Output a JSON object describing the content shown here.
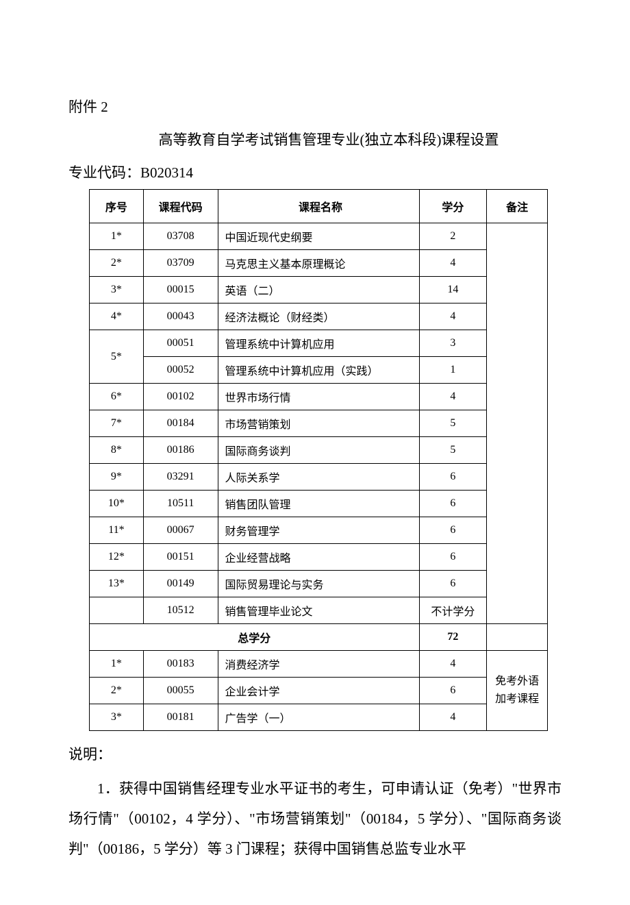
{
  "attachment": "附件 2",
  "title": "高等教育自学考试销售管理专业(独立本科段)课程设置",
  "majorCodeLabel": "专业代码：B020314",
  "headers": {
    "seq": "序号",
    "code": "课程代码",
    "name": "课程名称",
    "credit": "学分",
    "note": "备注"
  },
  "rows": [
    {
      "seq": "1*",
      "code": "03708",
      "name": "中国近现代史纲要",
      "credit": "2"
    },
    {
      "seq": "2*",
      "code": "03709",
      "name": "马克思主义基本原理概论",
      "credit": "4"
    },
    {
      "seq": "3*",
      "code": "00015",
      "name": "英语（二）",
      "credit": "14"
    },
    {
      "seq": "4*",
      "code": "00043",
      "name": "经济法概论（财经类）",
      "credit": "4"
    }
  ],
  "row5": {
    "seq": "5*",
    "codeA": "00051",
    "nameA": "管理系统中计算机应用",
    "creditA": "3",
    "codeB": "00052",
    "nameB": "管理系统中计算机应用（实践）",
    "creditB": "1"
  },
  "rowsAfter5": [
    {
      "seq": "6*",
      "code": "00102",
      "name": "世界市场行情",
      "credit": "4"
    },
    {
      "seq": "7*",
      "code": "00184",
      "name": "市场营销策划",
      "credit": "5"
    },
    {
      "seq": "8*",
      "code": "00186",
      "name": "国际商务谈判",
      "credit": "5"
    },
    {
      "seq": "9*",
      "code": "03291",
      "name": "人际关系学",
      "credit": "6"
    },
    {
      "seq": "10*",
      "code": "10511",
      "name": "销售团队管理",
      "credit": "6"
    },
    {
      "seq": "11*",
      "code": "00067",
      "name": "财务管理学",
      "credit": "6"
    },
    {
      "seq": "12*",
      "code": "00151",
      "name": "企业经营战略",
      "credit": "6"
    },
    {
      "seq": "13*",
      "code": "00149",
      "name": "国际贸易理论与实务",
      "credit": "6"
    },
    {
      "seq": "",
      "code": "10512",
      "name": "销售管理毕业论文",
      "credit": "不计学分"
    }
  ],
  "total": {
    "label": "总学分",
    "credit": "72"
  },
  "extra": [
    {
      "seq": "1*",
      "code": "00183",
      "name": "消费经济学",
      "credit": "4"
    },
    {
      "seq": "2*",
      "code": "00055",
      "name": "企业会计学",
      "credit": "6"
    },
    {
      "seq": "3*",
      "code": "00181",
      "name": "广告学（一）",
      "credit": "4"
    }
  ],
  "extraNote": "免考外语加考课程",
  "explainHeading": "说明：",
  "explainPara": "1．获得中国销售经理专业水平证书的考生，可申请认证（免考）\"世界市场行情\"（00102，4 学分）、\"市场营销策划\"（00184，5 学分）、\"国际商务谈判\"（00186，5 学分）等 3 门课程；获得中国销售总监专业水平"
}
